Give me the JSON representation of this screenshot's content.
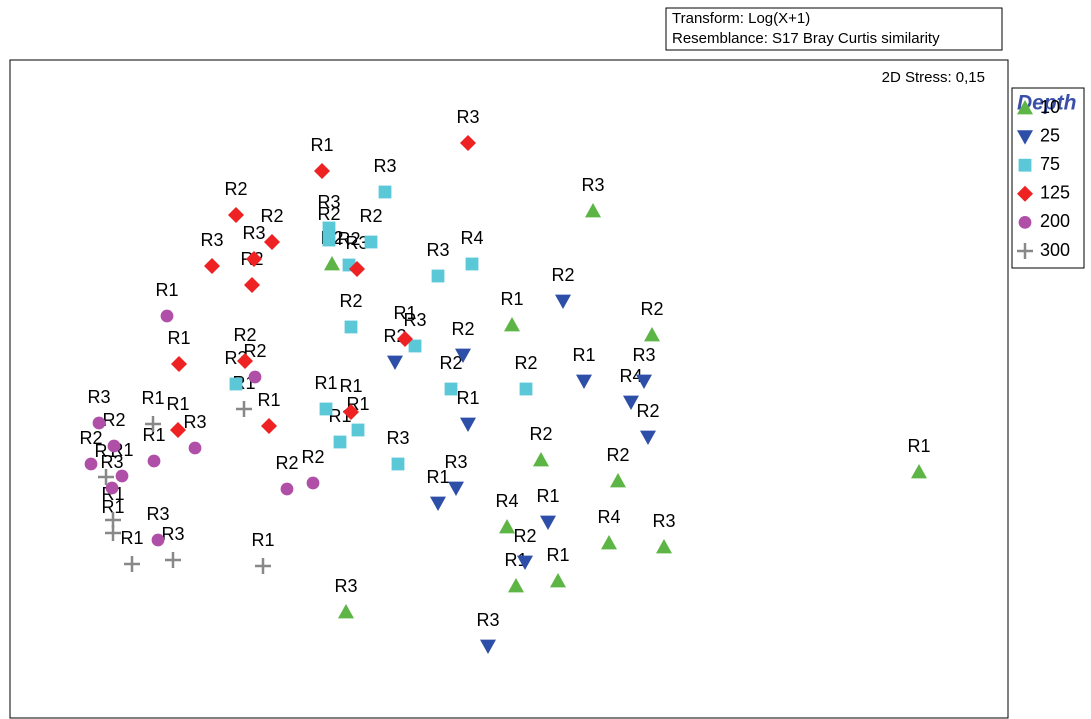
{
  "chart_data": {
    "type": "scatter",
    "transform": "Transform: Log(X+1)",
    "resemblance": "Resemblance: S17 Bray Curtis similarity",
    "stress": "2D Stress: 0,15",
    "legend_title": "Depth",
    "xlim": [
      0,
      998
    ],
    "ylim": [
      0,
      659
    ],
    "series": [
      {
        "name": "10",
        "color": "#5cb544",
        "marker": "triangle-up",
        "x": [
          583,
          502,
          642,
          322,
          531,
          608,
          497,
          599,
          654,
          506,
          548,
          336,
          909
        ],
        "values": [
          508,
          394,
          384,
          455,
          259,
          238,
          192,
          176,
          172,
          133,
          138,
          107,
          247
        ],
        "point_labels": [
          "R3",
          "R1",
          "R2",
          "R2",
          "R2",
          "R2",
          "R4",
          "R4",
          "R3",
          "R1",
          "R1",
          "R3",
          "R1"
        ]
      },
      {
        "name": "25",
        "color": "#2e4fa8",
        "marker": "triangle-down",
        "x": [
          553,
          385,
          453,
          574,
          634,
          621,
          638,
          458,
          446,
          428,
          538,
          515,
          478
        ],
        "values": [
          418,
          357,
          364,
          338,
          338,
          317,
          282,
          295,
          231,
          216,
          197,
          157,
          73
        ],
        "point_labels": [
          "R2",
          "R2",
          "R2",
          "R1",
          "R3",
          "R4",
          "R2",
          "R1",
          "R3",
          "R1",
          "R1",
          "R2",
          "R3"
        ]
      },
      {
        "name": "75",
        "color": "#5bc8d8",
        "marker": "square",
        "x": [
          375,
          319,
          319,
          361,
          339,
          428,
          462,
          341,
          405,
          226,
          441,
          516,
          316,
          348,
          330,
          388
        ],
        "values": [
          527,
          491,
          479,
          477,
          454,
          443,
          455,
          392,
          373,
          335,
          330,
          330,
          310,
          289,
          277,
          255
        ],
        "point_labels": [
          "R3",
          "R3",
          "R2",
          "R2",
          "R2",
          "R3",
          "R4",
          "R2",
          "R3",
          "R3",
          "R2",
          "R2",
          "R1",
          "R1",
          "R1",
          "R3"
        ]
      },
      {
        "name": "125",
        "color": "#ee2222",
        "marker": "diamond",
        "x": [
          458,
          312,
          226,
          262,
          244,
          202,
          242,
          347,
          169,
          235,
          395,
          341,
          168,
          259
        ],
        "values": [
          576,
          548,
          504,
          477,
          460,
          453,
          434,
          450,
          355,
          358,
          380,
          307,
          289,
          293
        ],
        "point_labels": [
          "R3",
          "R1",
          "R2",
          "R2",
          "R3",
          "R3",
          "R2",
          "R3",
          "R1",
          "R2",
          "R1",
          "R1",
          "R1",
          "R1"
        ]
      },
      {
        "name": "200",
        "color": "#b04fa8",
        "marker": "circle",
        "x": [
          157,
          245,
          89,
          185,
          104,
          81,
          112,
          144,
          277,
          303,
          148,
          102
        ],
        "values": [
          403,
          342,
          296,
          271,
          273,
          255,
          243,
          258,
          230,
          236,
          179,
          231
        ],
        "point_labels": [
          "R1",
          "R2",
          "R3",
          "R3",
          "R2",
          "R2",
          "R1",
          "R1",
          "R2",
          "R2",
          "R3",
          "R3"
        ]
      },
      {
        "name": "300",
        "color": "#888888",
        "marker": "plus",
        "x": [
          143,
          234,
          96,
          103,
          103,
          122,
          163,
          253
        ],
        "values": [
          295,
          310,
          242,
          199,
          186,
          155,
          159,
          153
        ],
        "point_labels": [
          "R1",
          "R1",
          "R1",
          "R1",
          "R1",
          "R1",
          "R3",
          "R1"
        ]
      }
    ]
  }
}
